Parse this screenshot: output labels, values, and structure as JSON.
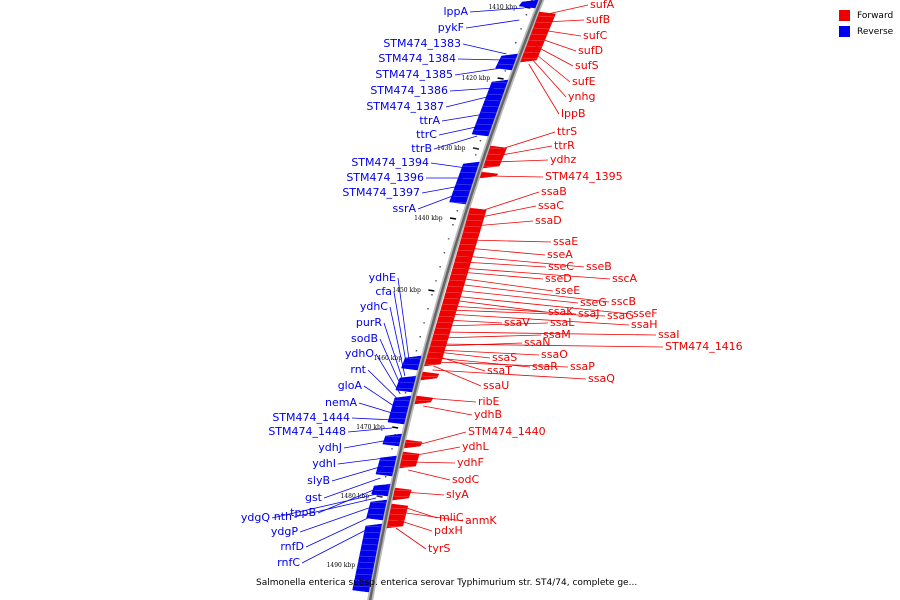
{
  "caption": "Salmonella enterica subsp. enterica serovar Typhimurium str. ST4/74, complete ge...",
  "legend": [
    {
      "label": "Forward",
      "color": "#ee0000"
    },
    {
      "label": "Reverse",
      "color": "#0000ee"
    }
  ],
  "colors": {
    "forward": "#ee0000",
    "reverse": "#0000ee",
    "backbone": "#888888"
  },
  "ticks": [
    "1410 kbp",
    "1420 kbp",
    "1430 kbp",
    "1440 kbp",
    "1450 kbp",
    "1460 kbp",
    "1470 kbp",
    "1480 kbp",
    "1490 kbp"
  ],
  "forward_genes": [
    "sufA",
    "sufB",
    "sufC",
    "sufD",
    "sufS",
    "sufE",
    "ynhg",
    "lppB",
    "ttrS",
    "ttrR",
    "ydhz",
    "STM474_1395",
    "ssaB",
    "ssaC",
    "ssaD",
    "ssaE",
    "sseA",
    "sseB",
    "sseC",
    "sscA",
    "sseD",
    "sseE",
    "sscB",
    "sseG",
    "sseF",
    "ssaK",
    "ssaJ",
    "ssaG",
    "ssaH",
    "ssaV",
    "ssaL",
    "ssaI",
    "ssaM",
    "STM474_1416",
    "ssaN",
    "ssaO",
    "ssaS",
    "ssaT",
    "ssaR",
    "ssaP",
    "ssaU",
    "ssaQ",
    "ribE",
    "ydhB",
    "STM474_1440",
    "ydhL",
    "ydhF",
    "sodC",
    "slyA",
    "mliC",
    "anmK",
    "pdxH",
    "tyrS"
  ],
  "reverse_genes": [
    "lppA",
    "pykF",
    "STM474_1383",
    "STM474_1384",
    "STM474_1385",
    "STM474_1386",
    "STM474_1387",
    "ttrA",
    "ttrC",
    "ttrB",
    "STM474_1394",
    "STM474_1396",
    "STM474_1397",
    "ssrA",
    "ydhE",
    "cfa",
    "ydhC",
    "purR",
    "sodB",
    "ydhO",
    "rnt",
    "gloA",
    "nemA",
    "STM474_1444",
    "STM474_1448",
    "ydhJ",
    "ydhI",
    "slyB",
    "gst",
    "tppB",
    "ydgQ",
    "nth",
    "ydgP",
    "rnfD",
    "rnfC"
  ]
}
